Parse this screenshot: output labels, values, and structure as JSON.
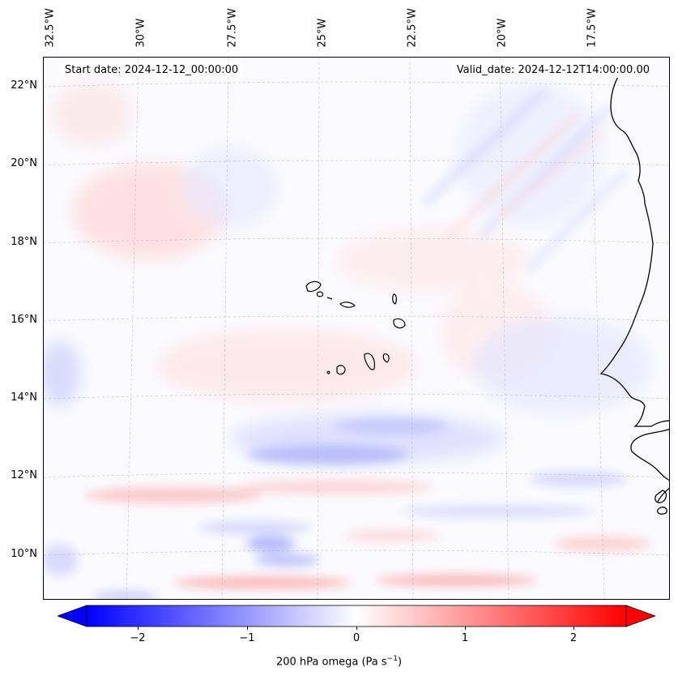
{
  "map": {
    "start_date": "Start date: 2024-12-12_00:00:00",
    "valid_date": "Valid_date: 2024-12-12T14:00:00.00",
    "lon_labels": [
      "32.5°W",
      "30°W",
      "27.5°W",
      "25°W",
      "22.5°W",
      "20°W",
      "17.5°W"
    ],
    "lat_labels": [
      "22°N",
      "20°N",
      "18°N",
      "16°N",
      "14°N",
      "12°N",
      "10°N"
    ],
    "gridlines": true
  },
  "colorbar": {
    "label": "200 hPa omega (Pa s",
    "label_sup": "−1",
    "label_close": ")",
    "ticks": [
      "−2",
      "−1",
      "0",
      "1",
      "2"
    ],
    "tick_values": [
      -2,
      -1,
      0,
      1,
      2
    ],
    "range": [
      -2.6,
      2.6
    ],
    "colormap": "bwr",
    "low_color": "#0000ff",
    "mid_color": "#ffffff",
    "high_color": "#ff0000"
  }
}
